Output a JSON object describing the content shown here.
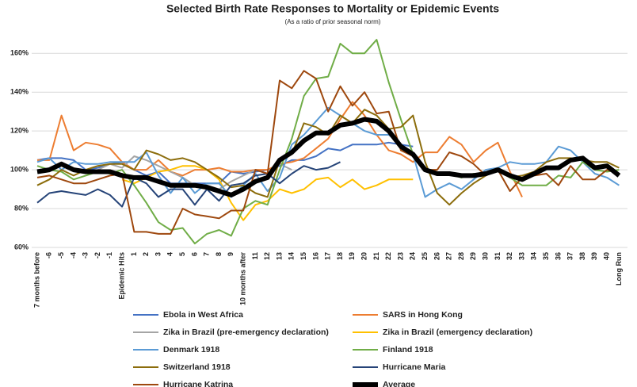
{
  "chart_data": {
    "type": "line",
    "title": "Selected Birth Rate Responses to Mortality or Epidemic Events",
    "subtitle": "(As a ratio of prior seasonal norm)",
    "categories": [
      "7 months before",
      "-6",
      "-5",
      "-4",
      "-3",
      "-2",
      "-1",
      "Epidemic Hits",
      "1",
      "2",
      "3",
      "4",
      "5",
      "6",
      "7",
      "8",
      "9",
      "10 months after",
      "11",
      "12",
      "13",
      "14",
      "15",
      "16",
      "17",
      "18",
      "19",
      "20",
      "21",
      "22",
      "23",
      "24",
      "25",
      "26",
      "27",
      "28",
      "29",
      "30",
      "31",
      "32",
      "33",
      "34",
      "35",
      "36",
      "37",
      "38",
      "39",
      "40",
      "Long Run"
    ],
    "ylim": [
      60,
      165
    ],
    "yticks": [
      {
        "value": 60,
        "label": "60%"
      },
      {
        "value": 80,
        "label": "80%"
      },
      {
        "value": 100,
        "label": "100%"
      },
      {
        "value": 120,
        "label": "120%"
      },
      {
        "value": 140,
        "label": "140%"
      },
      {
        "value": 160,
        "label": "160%"
      }
    ],
    "grid": true,
    "series": [
      {
        "name": "Ebola in West Africa",
        "color": "#4472c4",
        "values": [
          105,
          106,
          106,
          105,
          100,
          101,
          103,
          104,
          100,
          97,
          99,
          93,
          93,
          93,
          93,
          93,
          99,
          98,
          99,
          100,
          102,
          105,
          105,
          107,
          111,
          110,
          113,
          113,
          113,
          114,
          113,
          112,
          null,
          null,
          null,
          null,
          null,
          null,
          null,
          null,
          null,
          null,
          null,
          null,
          null,
          null,
          null,
          null,
          null
        ]
      },
      {
        "name": "SARS in Hong Kong",
        "color": "#ed7d31",
        "values": [
          105,
          105,
          128,
          110,
          114,
          113,
          111,
          104,
          100,
          100,
          105,
          99,
          97,
          100,
          100,
          101,
          99,
          99,
          100,
          100,
          103,
          104,
          106,
          111,
          116,
          126,
          135,
          128,
          118,
          110,
          108,
          104,
          109,
          109,
          117,
          113,
          104,
          110,
          114,
          99,
          86,
          null,
          null,
          null,
          null,
          null,
          null,
          null,
          null
        ]
      },
      {
        "name": "Zika in Brazil  (pre-emergency declaration)",
        "color": "#a5a5a5",
        "values": [
          null,
          null,
          null,
          null,
          null,
          100,
          103,
          101,
          107,
          105,
          102,
          99,
          96,
          92,
          92,
          90,
          94,
          97,
          100,
          98,
          103,
          100,
          null,
          null,
          null,
          null,
          null,
          null,
          null,
          null,
          null,
          null,
          null,
          null,
          null,
          null,
          null,
          null,
          null,
          null,
          null,
          null,
          null,
          null,
          null,
          null,
          null,
          null,
          null
        ]
      },
      {
        "name": "Zika in Brazil (emergency declaration)",
        "color": "#ffc000",
        "values": [
          null,
          null,
          null,
          null,
          null,
          null,
          null,
          95,
          93,
          96,
          99,
          100,
          102,
          102,
          100,
          95,
          83,
          74,
          82,
          84,
          90,
          88,
          90,
          95,
          96,
          91,
          95,
          90,
          92,
          95,
          95,
          95,
          null,
          null,
          null,
          null,
          null,
          null,
          null,
          null,
          null,
          null,
          null,
          null,
          null,
          null,
          null,
          null,
          null
        ]
      },
      {
        "name": "Denmark 1918",
        "color": "#5b9bd5",
        "values": [
          104,
          106,
          100,
          104,
          103,
          103,
          104,
          104,
          104,
          109,
          97,
          88,
          96,
          88,
          93,
          93,
          86,
          92,
          98,
          89,
          96,
          113,
          118,
          125,
          132,
          128,
          124,
          120,
          118,
          118,
          113,
          108,
          86,
          90,
          93,
          90,
          95,
          100,
          101,
          104,
          103,
          103,
          104,
          112,
          110,
          104,
          98,
          96,
          92
        ]
      },
      {
        "name": "Finland 1918",
        "color": "#70ad47",
        "values": [
          102,
          100,
          99,
          95,
          97,
          99,
          98,
          100,
          92,
          83,
          73,
          69,
          70,
          62,
          67,
          69,
          66,
          80,
          84,
          82,
          100,
          116,
          138,
          147,
          148,
          165,
          160,
          160,
          167,
          145,
          126,
          108,
          100,
          98,
          98,
          96,
          98,
          97,
          100,
          96,
          92,
          92,
          92,
          97,
          96,
          104,
          100,
          99,
          100
        ]
      },
      {
        "name": "Switzerland 1918",
        "color": "#8c6d0c",
        "values": [
          92,
          95,
          100,
          97,
          100,
          102,
          103,
          103,
          100,
          110,
          108,
          105,
          106,
          104,
          100,
          96,
          91,
          92,
          88,
          86,
          105,
          108,
          124,
          122,
          118,
          128,
          124,
          131,
          128,
          121,
          122,
          128,
          104,
          88,
          82,
          88,
          93,
          97,
          100,
          96,
          97,
          99,
          104,
          106,
          106,
          105,
          104,
          104,
          101
        ]
      },
      {
        "name": "Hurricane Maria",
        "color": "#264478",
        "values": [
          83,
          88,
          89,
          88,
          87,
          90,
          87,
          81,
          96,
          93,
          86,
          90,
          90,
          82,
          90,
          84,
          92,
          93,
          97,
          98,
          93,
          98,
          102,
          100,
          101,
          104,
          null,
          null,
          null,
          null,
          null,
          null,
          null,
          null,
          null,
          null,
          null,
          null,
          null,
          null,
          null,
          null,
          null,
          null,
          null,
          null,
          null,
          null,
          null
        ]
      },
      {
        "name": "Hurricane Katrina",
        "color": "#9e480e",
        "values": [
          96,
          97,
          95,
          93,
          93,
          95,
          97,
          98,
          68,
          68,
          67,
          67,
          80,
          77,
          76,
          75,
          79,
          79,
          100,
          98,
          146,
          142,
          151,
          147,
          130,
          143,
          133,
          140,
          129,
          130,
          110,
          107,
          100,
          100,
          109,
          107,
          103,
          97,
          100,
          89,
          96,
          97,
          98,
          92,
          102,
          95,
          95,
          100,
          98
        ]
      },
      {
        "name": "Average",
        "color": "#000000",
        "values": [
          99,
          100,
          103,
          100,
          99,
          99,
          99,
          97,
          96,
          96,
          94,
          92,
          92,
          92,
          91,
          89,
          87,
          90,
          94,
          96,
          105,
          109,
          115,
          119,
          119,
          123,
          124,
          126,
          125,
          120,
          112,
          108,
          100,
          98,
          98,
          97,
          97,
          98,
          100,
          97,
          95,
          98,
          101,
          101,
          105,
          106,
          101,
          102,
          97
        ]
      }
    ]
  }
}
